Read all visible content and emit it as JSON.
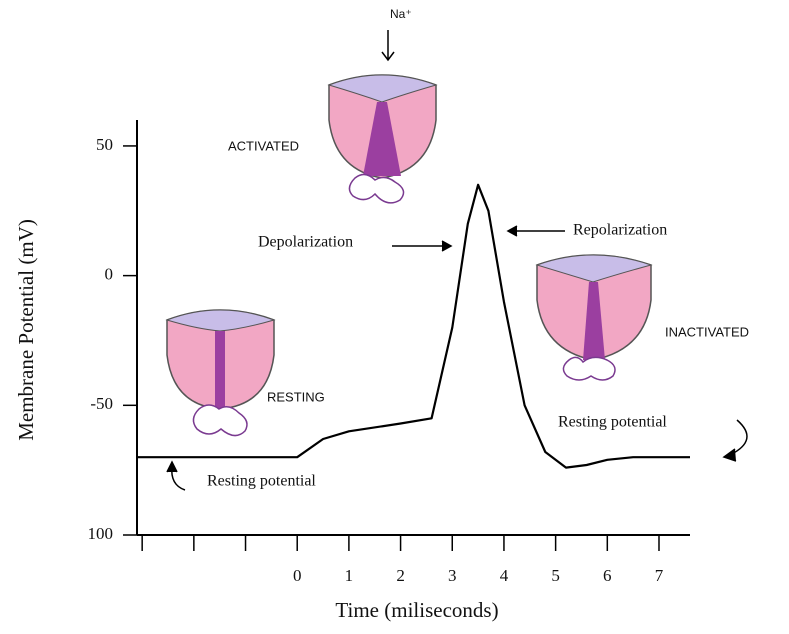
{
  "chart_data": {
    "type": "line",
    "ylabel": "Membrane Potential (mV)",
    "xlabel": "Time (miliseconds)",
    "ylim": [
      -100,
      60
    ],
    "yticks": [
      50,
      0,
      -50,
      {
        "value": -100,
        "label": "100"
      }
    ],
    "xlim": [
      -3.1,
      7.6
    ],
    "xticks": [
      {
        "value": -3,
        "label": null
      },
      {
        "value": -2,
        "label": null
      },
      {
        "value": -1,
        "label": null
      },
      0,
      1,
      2,
      3,
      4,
      5,
      6,
      7
    ],
    "x": [
      -3.1,
      0,
      0.5,
      1,
      2,
      2.6,
      3,
      3.3,
      3.5,
      3.7,
      4,
      4.4,
      4.8,
      5.2,
      5.6,
      6,
      6.5,
      7.6
    ],
    "values": [
      -70,
      -70,
      -63,
      -60,
      -57,
      -55,
      -20,
      20,
      35,
      25,
      -10,
      -50,
      -68,
      -74,
      -73,
      -71,
      -70,
      -70
    ],
    "color": "#000000",
    "annotations": [
      "Depolarization",
      "Repolarization",
      "Resting potential",
      "Resting potential",
      "ACTIVATED",
      "RESTING",
      "INACTIVATED",
      "Na⁺"
    ]
  }
}
